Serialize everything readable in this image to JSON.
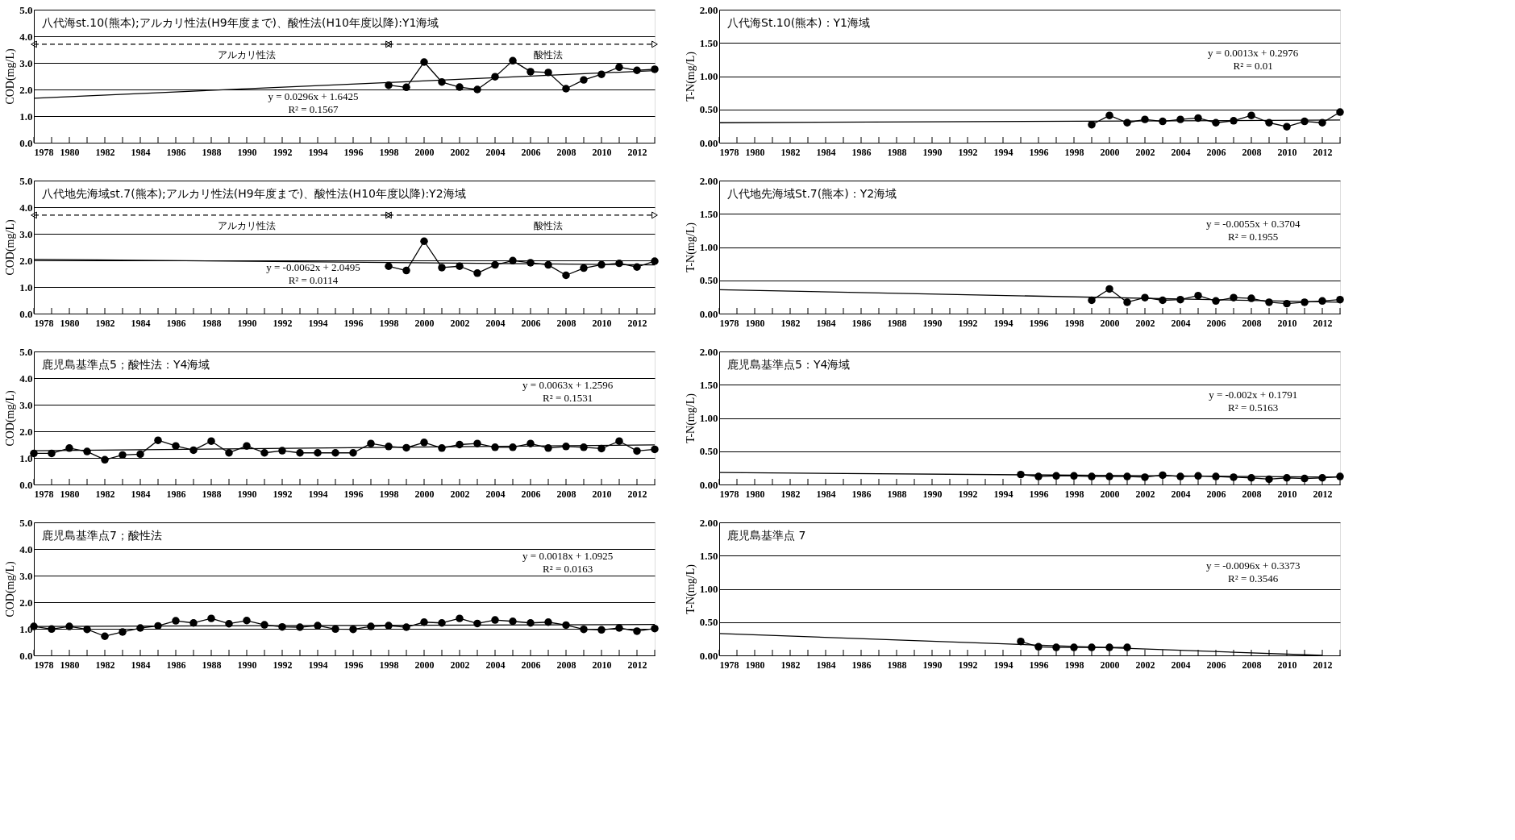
{
  "chart_data": [
    {
      "type": "line",
      "title": "八代海st.10(熊本);アルカリ性法(H9年度まで)、酸性法(H10年度以降):Y1海域",
      "ylabel": "COD(mg/L)",
      "xlim": [
        1978,
        2013
      ],
      "ylim": [
        0,
        5
      ],
      "yticks": [
        {
          "value": 0,
          "label": "0.0"
        },
        {
          "value": 1,
          "label": "1.0"
        },
        {
          "value": 2,
          "label": "2.0"
        },
        {
          "value": 3,
          "label": "3.0"
        },
        {
          "value": 4,
          "label": "4.0"
        },
        {
          "value": 5,
          "label": "5.0"
        }
      ],
      "xticks": [
        1978,
        {
          "value": 1979,
          "label": null
        },
        1980,
        {
          "value": 1981,
          "label": null
        },
        1982,
        {
          "value": 1983,
          "label": null
        },
        1984,
        {
          "value": 1985,
          "label": null
        },
        1986,
        {
          "value": 1987,
          "label": null
        },
        1988,
        {
          "value": 1989,
          "label": null
        },
        1990,
        {
          "value": 1991,
          "label": null
        },
        1992,
        {
          "value": 1993,
          "label": null
        },
        1994,
        {
          "value": 1995,
          "label": null
        },
        1996,
        {
          "value": 1997,
          "label": null
        },
        1998,
        {
          "value": 1999,
          "label": null
        },
        2000,
        {
          "value": 2001,
          "label": null
        },
        2002,
        {
          "value": 2003,
          "label": null
        },
        2004,
        {
          "value": 2005,
          "label": null
        },
        2006,
        {
          "value": 2007,
          "label": null
        },
        2008,
        {
          "value": 2009,
          "label": null
        },
        2010,
        {
          "value": 2011,
          "label": null
        },
        2012,
        {
          "value": 2013,
          "label": null
        }
      ],
      "grid": "y",
      "legend": false,
      "marker": "circle",
      "annotations": [
        "y = 0.0296x + 1.6425",
        "R² = 0.1567"
      ],
      "series": [
        {
          "type": "line",
          "name": "アルカリ性法",
          "line_style": "dashed",
          "marker": "triangle",
          "color": "#000000",
          "x": [
            1978,
            1998
          ],
          "values": [
            3.7,
            3.7
          ]
        },
        {
          "type": "line",
          "name": "酸性法",
          "line_style": "dashed",
          "marker": "triangle",
          "color": "#000000",
          "x": [
            1998,
            2013
          ],
          "values": [
            3.7,
            3.7
          ]
        },
        {
          "color": "#000000",
          "x": [
            1998,
            1999,
            2000,
            2001,
            2002,
            2003,
            2004,
            2005,
            2006,
            2007,
            2008,
            2009,
            2010,
            2011,
            2012,
            2013
          ],
          "values": [
            2.16,
            2.08,
            3.03,
            2.28,
            2.09,
            2.0,
            2.48,
            3.08,
            2.67,
            2.64,
            2.03,
            2.36,
            2.57,
            2.84,
            2.72,
            2.76
          ]
        },
        {
          "type": "line",
          "marker": "none",
          "color": "#000000",
          "x": [
            1978,
            2013
          ],
          "values": [
            1.67,
            2.71
          ]
        }
      ]
    },
    {
      "type": "line",
      "title": "八代海St.10(熊本)：Y1海域",
      "ylabel": "T-N(mg/L)",
      "xlim": [
        1978,
        2013
      ],
      "ylim": [
        0,
        2
      ],
      "yticks": [
        {
          "value": 0,
          "label": "0.00"
        },
        {
          "value": 0.5,
          "label": "0.50"
        },
        {
          "value": 1,
          "label": "1.00"
        },
        {
          "value": 1.5,
          "label": "1.50"
        },
        {
          "value": 2,
          "label": "2.00"
        }
      ],
      "xticks": [
        1978,
        {
          "value": 1979,
          "label": null
        },
        1980,
        {
          "value": 1981,
          "label": null
        },
        1982,
        {
          "value": 1983,
          "label": null
        },
        1984,
        {
          "value": 1985,
          "label": null
        },
        1986,
        {
          "value": 1987,
          "label": null
        },
        1988,
        {
          "value": 1989,
          "label": null
        },
        1990,
        {
          "value": 1991,
          "label": null
        },
        1992,
        {
          "value": 1993,
          "label": null
        },
        1994,
        {
          "value": 1995,
          "label": null
        },
        1996,
        {
          "value": 1997,
          "label": null
        },
        1998,
        {
          "value": 1999,
          "label": null
        },
        2000,
        {
          "value": 2001,
          "label": null
        },
        2002,
        {
          "value": 2003,
          "label": null
        },
        2004,
        {
          "value": 2005,
          "label": null
        },
        2006,
        {
          "value": 2007,
          "label": null
        },
        2008,
        {
          "value": 2009,
          "label": null
        },
        2010,
        {
          "value": 2011,
          "label": null
        },
        2012,
        {
          "value": 2013,
          "label": null
        }
      ],
      "grid": "y",
      "legend": false,
      "marker": "circle",
      "annotations": [
        "y = 0.0013x + 0.2976",
        "R² = 0.01"
      ],
      "series": [
        {
          "color": "#000000",
          "x": [
            1999,
            2000,
            2001,
            2002,
            2003,
            2004,
            2005,
            2006,
            2007,
            2008,
            2009,
            2010,
            2011,
            2012,
            2013
          ],
          "values": [
            0.27,
            0.41,
            0.3,
            0.35,
            0.32,
            0.35,
            0.37,
            0.3,
            0.33,
            0.41,
            0.3,
            0.24,
            0.32,
            0.3,
            0.46
          ]
        },
        {
          "type": "line",
          "marker": "none",
          "color": "#000000",
          "x": [
            1978,
            2013
          ],
          "values": [
            0.3,
            0.34
          ]
        }
      ]
    },
    {
      "type": "line",
      "title": "八代地先海域st.7(熊本);アルカリ性法(H9年度まで)、酸性法(H10年度以降):Y2海域",
      "ylabel": "COD(mg/L)",
      "xlim": [
        1978,
        2013
      ],
      "ylim": [
        0,
        5
      ],
      "yticks": [
        {
          "value": 0,
          "label": "0.0"
        },
        {
          "value": 1,
          "label": "1.0"
        },
        {
          "value": 2,
          "label": "2.0"
        },
        {
          "value": 3,
          "label": "3.0"
        },
        {
          "value": 4,
          "label": "4.0"
        },
        {
          "value": 5,
          "label": "5.0"
        }
      ],
      "xticks": [
        1978,
        {
          "value": 1979,
          "label": null
        },
        1980,
        {
          "value": 1981,
          "label": null
        },
        1982,
        {
          "value": 1983,
          "label": null
        },
        1984,
        {
          "value": 1985,
          "label": null
        },
        1986,
        {
          "value": 1987,
          "label": null
        },
        1988,
        {
          "value": 1989,
          "label": null
        },
        1990,
        {
          "value": 1991,
          "label": null
        },
        1992,
        {
          "value": 1993,
          "label": null
        },
        1994,
        {
          "value": 1995,
          "label": null
        },
        1996,
        {
          "value": 1997,
          "label": null
        },
        1998,
        {
          "value": 1999,
          "label": null
        },
        2000,
        {
          "value": 2001,
          "label": null
        },
        2002,
        {
          "value": 2003,
          "label": null
        },
        2004,
        {
          "value": 2005,
          "label": null
        },
        2006,
        {
          "value": 2007,
          "label": null
        },
        2008,
        {
          "value": 2009,
          "label": null
        },
        2010,
        {
          "value": 2011,
          "label": null
        },
        2012,
        {
          "value": 2013,
          "label": null
        }
      ],
      "grid": "y",
      "legend": false,
      "marker": "circle",
      "annotations": [
        "y = -0.0062x + 2.0495",
        "R² = 0.0114"
      ],
      "series": [
        {
          "type": "line",
          "name": "アルカリ性法",
          "line_style": "dashed",
          "marker": "triangle",
          "color": "#000000",
          "x": [
            1978,
            1998
          ],
          "values": [
            3.7,
            3.7
          ]
        },
        {
          "type": "line",
          "name": "酸性法",
          "line_style": "dashed",
          "marker": "triangle",
          "color": "#000000",
          "x": [
            1998,
            2013
          ],
          "values": [
            3.7,
            3.7
          ]
        },
        {
          "color": "#000000",
          "x": [
            1998,
            1999,
            2000,
            2001,
            2002,
            2003,
            2004,
            2005,
            2006,
            2007,
            2008,
            2009,
            2010,
            2011,
            2012,
            2013
          ],
          "values": [
            1.78,
            1.62,
            2.72,
            1.73,
            1.78,
            1.52,
            1.83,
            1.99,
            1.91,
            1.83,
            1.44,
            1.71,
            1.84,
            1.89,
            1.75,
            1.97
          ]
        },
        {
          "type": "line",
          "marker": "none",
          "color": "#000000",
          "x": [
            1978,
            2013
          ],
          "values": [
            2.04,
            1.83
          ]
        }
      ]
    },
    {
      "type": "line",
      "title": "八代地先海域St.7(熊本)：Y2海域",
      "ylabel": "T-N(mg/L)",
      "xlim": [
        1978,
        2013
      ],
      "ylim": [
        0,
        2
      ],
      "yticks": [
        {
          "value": 0,
          "label": "0.00"
        },
        {
          "value": 0.5,
          "label": "0.50"
        },
        {
          "value": 1,
          "label": "1.00"
        },
        {
          "value": 1.5,
          "label": "1.50"
        },
        {
          "value": 2,
          "label": "2.00"
        }
      ],
      "xticks": [
        1978,
        {
          "value": 1979,
          "label": null
        },
        1980,
        {
          "value": 1981,
          "label": null
        },
        1982,
        {
          "value": 1983,
          "label": null
        },
        1984,
        {
          "value": 1985,
          "label": null
        },
        1986,
        {
          "value": 1987,
          "label": null
        },
        1988,
        {
          "value": 1989,
          "label": null
        },
        1990,
        {
          "value": 1991,
          "label": null
        },
        1992,
        {
          "value": 1993,
          "label": null
        },
        1994,
        {
          "value": 1995,
          "label": null
        },
        1996,
        {
          "value": 1997,
          "label": null
        },
        1998,
        {
          "value": 1999,
          "label": null
        },
        2000,
        {
          "value": 2001,
          "label": null
        },
        2002,
        {
          "value": 2003,
          "label": null
        },
        2004,
        {
          "value": 2005,
          "label": null
        },
        2006,
        {
          "value": 2007,
          "label": null
        },
        2008,
        {
          "value": 2009,
          "label": null
        },
        2010,
        {
          "value": 2011,
          "label": null
        },
        2012,
        {
          "value": 2013,
          "label": null
        }
      ],
      "grid": "y",
      "legend": false,
      "marker": "circle",
      "annotations": [
        "y = -0.0055x + 0.3704",
        "R² = 0.1955"
      ],
      "series": [
        {
          "color": "#000000",
          "x": [
            1999,
            2000,
            2001,
            2002,
            2003,
            2004,
            2005,
            2006,
            2007,
            2008,
            2009,
            2010,
            2011,
            2012,
            2013
          ],
          "values": [
            0.2,
            0.37,
            0.17,
            0.24,
            0.2,
            0.21,
            0.27,
            0.19,
            0.24,
            0.23,
            0.17,
            0.15,
            0.17,
            0.19,
            0.21
          ]
        },
        {
          "type": "line",
          "marker": "none",
          "color": "#000000",
          "x": [
            1978,
            2013
          ],
          "values": [
            0.36,
            0.17
          ]
        }
      ]
    },
    {
      "type": "line",
      "title": "鹿児島基準点5；酸性法：Y4海域",
      "ylabel": "COD(mg/L)",
      "xlim": [
        1978,
        2013
      ],
      "ylim": [
        0,
        5
      ],
      "yticks": [
        {
          "value": 0,
          "label": "0.0"
        },
        {
          "value": 1,
          "label": "1.0"
        },
        {
          "value": 2,
          "label": "2.0"
        },
        {
          "value": 3,
          "label": "3.0"
        },
        {
          "value": 4,
          "label": "4.0"
        },
        {
          "value": 5,
          "label": "5.0"
        }
      ],
      "xticks": [
        1978,
        {
          "value": 1979,
          "label": null
        },
        1980,
        {
          "value": 1981,
          "label": null
        },
        1982,
        {
          "value": 1983,
          "label": null
        },
        1984,
        {
          "value": 1985,
          "label": null
        },
        1986,
        {
          "value": 1987,
          "label": null
        },
        1988,
        {
          "value": 1989,
          "label": null
        },
        1990,
        {
          "value": 1991,
          "label": null
        },
        1992,
        {
          "value": 1993,
          "label": null
        },
        1994,
        {
          "value": 1995,
          "label": null
        },
        1996,
        {
          "value": 1997,
          "label": null
        },
        1998,
        {
          "value": 1999,
          "label": null
        },
        2000,
        {
          "value": 2001,
          "label": null
        },
        2002,
        {
          "value": 2003,
          "label": null
        },
        2004,
        {
          "value": 2005,
          "label": null
        },
        2006,
        {
          "value": 2007,
          "label": null
        },
        2008,
        {
          "value": 2009,
          "label": null
        },
        2010,
        {
          "value": 2011,
          "label": null
        },
        2012,
        {
          "value": 2013,
          "label": null
        }
      ],
      "grid": "y",
      "legend": false,
      "marker": "circle",
      "annotations": [
        "y = 0.0063x + 1.2596",
        "R² = 0.1531"
      ],
      "series": [
        {
          "color": "#000000",
          "x": [
            1978,
            1979,
            1980,
            1981,
            1982,
            1983,
            1984,
            1985,
            1986,
            1987,
            1988,
            1989,
            1990,
            1991,
            1992,
            1993,
            1994,
            1995,
            1996,
            1997,
            1998,
            1999,
            2000,
            2001,
            2002,
            2003,
            2004,
            2005,
            2006,
            2007,
            2008,
            2009,
            2010,
            2011,
            2012,
            2013
          ],
          "values": [
            1.17,
            1.17,
            1.37,
            1.24,
            0.93,
            1.11,
            1.14,
            1.66,
            1.45,
            1.29,
            1.63,
            1.19,
            1.45,
            1.19,
            1.27,
            1.19,
            1.19,
            1.19,
            1.19,
            1.54,
            1.43,
            1.38,
            1.58,
            1.37,
            1.5,
            1.54,
            1.4,
            1.4,
            1.54,
            1.37,
            1.43,
            1.4,
            1.35,
            1.63,
            1.26,
            1.32
          ]
        },
        {
          "type": "line",
          "marker": "none",
          "color": "#000000",
          "x": [
            1978,
            2013
          ],
          "values": [
            1.27,
            1.49
          ]
        }
      ]
    },
    {
      "type": "line",
      "title": "鹿児島基準点5：Y4海域",
      "ylabel": "T-N(mg/L)",
      "xlim": [
        1978,
        2013
      ],
      "ylim": [
        0,
        2
      ],
      "yticks": [
        {
          "value": 0,
          "label": "0.00"
        },
        {
          "value": 0.5,
          "label": "0.50"
        },
        {
          "value": 1,
          "label": "1.00"
        },
        {
          "value": 1.5,
          "label": "1.50"
        },
        {
          "value": 2,
          "label": "2.00"
        }
      ],
      "xticks": [
        1978,
        {
          "value": 1979,
          "label": null
        },
        1980,
        {
          "value": 1981,
          "label": null
        },
        1982,
        {
          "value": 1983,
          "label": null
        },
        1984,
        {
          "value": 1985,
          "label": null
        },
        1986,
        {
          "value": 1987,
          "label": null
        },
        1988,
        {
          "value": 1989,
          "label": null
        },
        1990,
        {
          "value": 1991,
          "label": null
        },
        1992,
        {
          "value": 1993,
          "label": null
        },
        1994,
        {
          "value": 1995,
          "label": null
        },
        1996,
        {
          "value": 1997,
          "label": null
        },
        1998,
        {
          "value": 1999,
          "label": null
        },
        2000,
        {
          "value": 2001,
          "label": null
        },
        2002,
        {
          "value": 2003,
          "label": null
        },
        2004,
        {
          "value": 2005,
          "label": null
        },
        2006,
        {
          "value": 2007,
          "label": null
        },
        2008,
        {
          "value": 2009,
          "label": null
        },
        2010,
        {
          "value": 2011,
          "label": null
        },
        2012,
        {
          "value": 2013,
          "label": null
        }
      ],
      "grid": "y",
      "legend": false,
      "marker": "circle",
      "annotations": [
        "y = -0.002x + 0.1791",
        "R² = 0.5163"
      ],
      "series": [
        {
          "color": "#000000",
          "x": [
            1995,
            1996,
            1997,
            1998,
            1999,
            2000,
            2001,
            2002,
            2003,
            2004,
            2005,
            2006,
            2007,
            2008,
            2009,
            2010,
            2011,
            2012,
            2013
          ],
          "values": [
            0.15,
            0.12,
            0.13,
            0.13,
            0.12,
            0.12,
            0.12,
            0.11,
            0.14,
            0.12,
            0.13,
            0.12,
            0.11,
            0.1,
            0.08,
            0.1,
            0.09,
            0.1,
            0.12
          ]
        },
        {
          "type": "line",
          "marker": "none",
          "color": "#000000",
          "x": [
            1978,
            2013
          ],
          "values": [
            0.18,
            0.11
          ]
        }
      ]
    },
    {
      "type": "line",
      "title": "鹿児島基準点7；酸性法",
      "ylabel": "COD(mg/L)",
      "xlim": [
        1978,
        2013
      ],
      "ylim": [
        0,
        5
      ],
      "yticks": [
        {
          "value": 0,
          "label": "0.0"
        },
        {
          "value": 1,
          "label": "1.0"
        },
        {
          "value": 2,
          "label": "2.0"
        },
        {
          "value": 3,
          "label": "3.0"
        },
        {
          "value": 4,
          "label": "4.0"
        },
        {
          "value": 5,
          "label": "5.0"
        }
      ],
      "xticks": [
        1978,
        {
          "value": 1979,
          "label": null
        },
        1980,
        {
          "value": 1981,
          "label": null
        },
        1982,
        {
          "value": 1983,
          "label": null
        },
        1984,
        {
          "value": 1985,
          "label": null
        },
        1986,
        {
          "value": 1987,
          "label": null
        },
        1988,
        {
          "value": 1989,
          "label": null
        },
        1990,
        {
          "value": 1991,
          "label": null
        },
        1992,
        {
          "value": 1993,
          "label": null
        },
        1994,
        {
          "value": 1995,
          "label": null
        },
        1996,
        {
          "value": 1997,
          "label": null
        },
        1998,
        {
          "value": 1999,
          "label": null
        },
        2000,
        {
          "value": 2001,
          "label": null
        },
        2002,
        {
          "value": 2003,
          "label": null
        },
        2004,
        {
          "value": 2005,
          "label": null
        },
        2006,
        {
          "value": 2007,
          "label": null
        },
        2008,
        {
          "value": 2009,
          "label": null
        },
        2010,
        {
          "value": 2011,
          "label": null
        },
        2012,
        {
          "value": 2013,
          "label": null
        }
      ],
      "grid": "y",
      "legend": false,
      "marker": "circle",
      "annotations": [
        "y = 0.0018x + 1.0925",
        "R² = 0.0163"
      ],
      "series": [
        {
          "color": "#000000",
          "x": [
            1978,
            1979,
            1980,
            1981,
            1982,
            1983,
            1984,
            1985,
            1986,
            1987,
            1988,
            1989,
            1990,
            1991,
            1992,
            1993,
            1994,
            1995,
            1996,
            1997,
            1998,
            1999,
            2000,
            2001,
            2002,
            2003,
            2004,
            2005,
            2006,
            2007,
            2008,
            2009,
            2010,
            2011,
            2012,
            2013
          ],
          "values": [
            1.09,
            0.99,
            1.09,
            0.98,
            0.72,
            0.88,
            1.03,
            1.11,
            1.3,
            1.22,
            1.39,
            1.19,
            1.31,
            1.15,
            1.07,
            1.06,
            1.12,
            0.99,
            0.98,
            1.09,
            1.12,
            1.06,
            1.25,
            1.22,
            1.39,
            1.2,
            1.33,
            1.28,
            1.22,
            1.25,
            1.14,
            0.98,
            0.96,
            1.03,
            0.91,
            1.01
          ]
        },
        {
          "type": "line",
          "marker": "none",
          "color": "#000000",
          "x": [
            1978,
            2013
          ],
          "values": [
            1.09,
            1.16
          ]
        }
      ]
    },
    {
      "type": "line",
      "title": "鹿児島基準点 7",
      "ylabel": "T-N(mg/L)",
      "xlim": [
        1978,
        2013
      ],
      "ylim": [
        0,
        2
      ],
      "yticks": [
        {
          "value": 0,
          "label": "0.00"
        },
        {
          "value": 0.5,
          "label": "0.50"
        },
        {
          "value": 1,
          "label": "1.00"
        },
        {
          "value": 1.5,
          "label": "1.50"
        },
        {
          "value": 2,
          "label": "2.00"
        }
      ],
      "xticks": [
        1978,
        {
          "value": 1979,
          "label": null
        },
        1980,
        {
          "value": 1981,
          "label": null
        },
        1982,
        {
          "value": 1983,
          "label": null
        },
        1984,
        {
          "value": 1985,
          "label": null
        },
        1986,
        {
          "value": 1987,
          "label": null
        },
        1988,
        {
          "value": 1989,
          "label": null
        },
        1990,
        {
          "value": 1991,
          "label": null
        },
        1992,
        {
          "value": 1993,
          "label": null
        },
        1994,
        {
          "value": 1995,
          "label": null
        },
        1996,
        {
          "value": 1997,
          "label": null
        },
        1998,
        {
          "value": 1999,
          "label": null
        },
        2000,
        {
          "value": 2001,
          "label": null
        },
        2002,
        {
          "value": 2003,
          "label": null
        },
        2004,
        {
          "value": 2005,
          "label": null
        },
        2006,
        {
          "value": 2007,
          "label": null
        },
        2008,
        {
          "value": 2009,
          "label": null
        },
        2010,
        {
          "value": 2011,
          "label": null
        },
        2012,
        {
          "value": 2013,
          "label": null
        }
      ],
      "grid": "y",
      "legend": false,
      "marker": "circle",
      "annotations": [
        "y = -0.0096x + 0.3373",
        "R² = 0.3546"
      ],
      "series": [
        {
          "color": "#000000",
          "x": [
            1995,
            1996,
            1997,
            1998,
            1999,
            2000,
            2001
          ],
          "values": [
            0.21,
            0.13,
            0.12,
            0.12,
            0.12,
            0.12,
            0.12
          ]
        },
        {
          "type": "line",
          "marker": "none",
          "color": "#000000",
          "x": [
            1978,
            2012
          ],
          "values": [
            0.33,
            0.0
          ]
        }
      ]
    }
  ]
}
